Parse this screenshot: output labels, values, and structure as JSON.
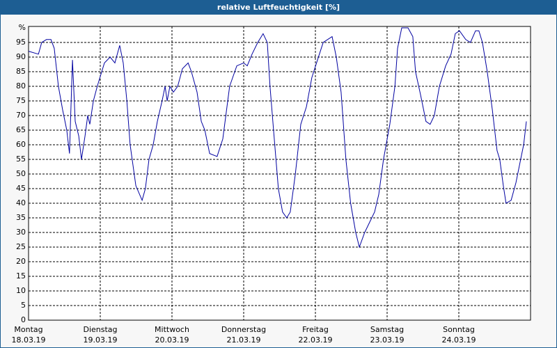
{
  "chart_data": {
    "type": "line",
    "title": "relative Luftfeuchtigkeit [%]",
    "x": [
      0,
      3.3,
      4.4,
      6,
      7.5,
      8.6,
      10,
      11.4,
      12.8,
      13.7,
      14.7,
      15.6,
      16.8,
      17.7,
      18.9,
      19.8,
      20.5,
      21.7,
      23,
      24.5,
      25.4,
      27.3,
      28.9,
      30.5,
      31.7,
      32.9,
      34,
      35.9,
      38,
      39.1,
      40.3,
      41.7,
      43.1,
      44.7,
      45.7,
      46.4,
      47.3,
      48.5,
      49.9,
      51.5,
      53.4,
      54.5,
      56.4,
      57.8,
      59,
      60.6,
      63.1,
      65,
      67.3,
      69.7,
      72,
      73.2,
      74.8,
      76.7,
      78.5,
      79.9,
      80.8,
      82,
      83.6,
      85,
      86.4,
      87.6,
      89.3,
      91.1,
      93,
      94.8,
      96.7,
      98.6,
      101.6,
      103,
      104.6,
      106.2,
      107.8,
      109.5,
      110.7,
      112.5,
      115.8,
      117.2,
      118.8,
      120.9,
      122.6,
      123.5,
      124.9,
      127,
      128.6,
      129.5,
      131.2,
      133,
      134.4,
      135.8,
      137.5,
      139.6,
      141.4,
      142.8,
      144.2,
      146.3,
      147.9,
      149.6,
      150.7,
      151.9,
      153.5,
      155.2,
      156.8,
      157.7,
      158.9,
      159.8,
      161.5,
      163.1,
      164.7,
      165.7,
      166.6
    ],
    "series": [
      {
        "color": "#0000a0",
        "values": [
          92,
          91,
          95,
          96,
          96,
          93,
          80,
          72,
          65,
          57,
          89,
          68,
          63,
          55,
          63,
          70,
          67,
          75,
          80,
          85,
          88,
          90,
          88,
          94,
          88,
          75,
          60,
          46,
          41,
          45,
          55,
          60,
          68,
          75,
          80,
          75,
          80,
          78,
          80,
          86,
          88,
          85,
          78,
          68,
          65,
          57,
          56,
          62,
          80,
          87,
          88,
          87,
          91,
          95,
          98,
          95,
          80,
          65,
          45,
          37,
          35,
          37,
          50,
          67,
          73,
          83,
          89,
          95,
          97,
          90,
          78,
          55,
          40,
          30,
          25,
          30,
          37,
          43,
          55,
          67,
          80,
          93,
          100,
          100,
          97,
          85,
          77,
          68,
          67,
          70,
          80,
          87,
          91,
          98,
          99,
          96,
          95,
          99,
          99,
          95,
          85,
          72,
          58,
          55,
          46,
          40,
          41,
          47,
          55,
          60,
          68
        ]
      }
    ],
    "xlim": [
      0,
      168
    ],
    "xticks": [
      {
        "value": 0,
        "label": "Montag"
      },
      {
        "value": 24,
        "label": "Dienstag"
      },
      {
        "value": 48,
        "label": "Mittwoch"
      },
      {
        "value": 72,
        "label": "Donnerstag"
      },
      {
        "value": 96,
        "label": "Freitag"
      },
      {
        "value": 120,
        "label": "Samstag"
      },
      {
        "value": 144,
        "label": "Sonntag"
      }
    ],
    "xtick_dates": [
      "18.03.19",
      "19.03.19",
      "20.03.19",
      "21.03.19",
      "22.03.19",
      "23.03.19",
      "24.03.19"
    ],
    "ylim": [
      0,
      100
    ],
    "yticks": [
      0,
      5,
      10,
      15,
      20,
      25,
      30,
      35,
      40,
      45,
      50,
      55,
      60,
      65,
      70,
      75,
      80,
      85,
      90,
      95,
      {
        "value": 100,
        "label": "%"
      }
    ],
    "grid": true
  }
}
